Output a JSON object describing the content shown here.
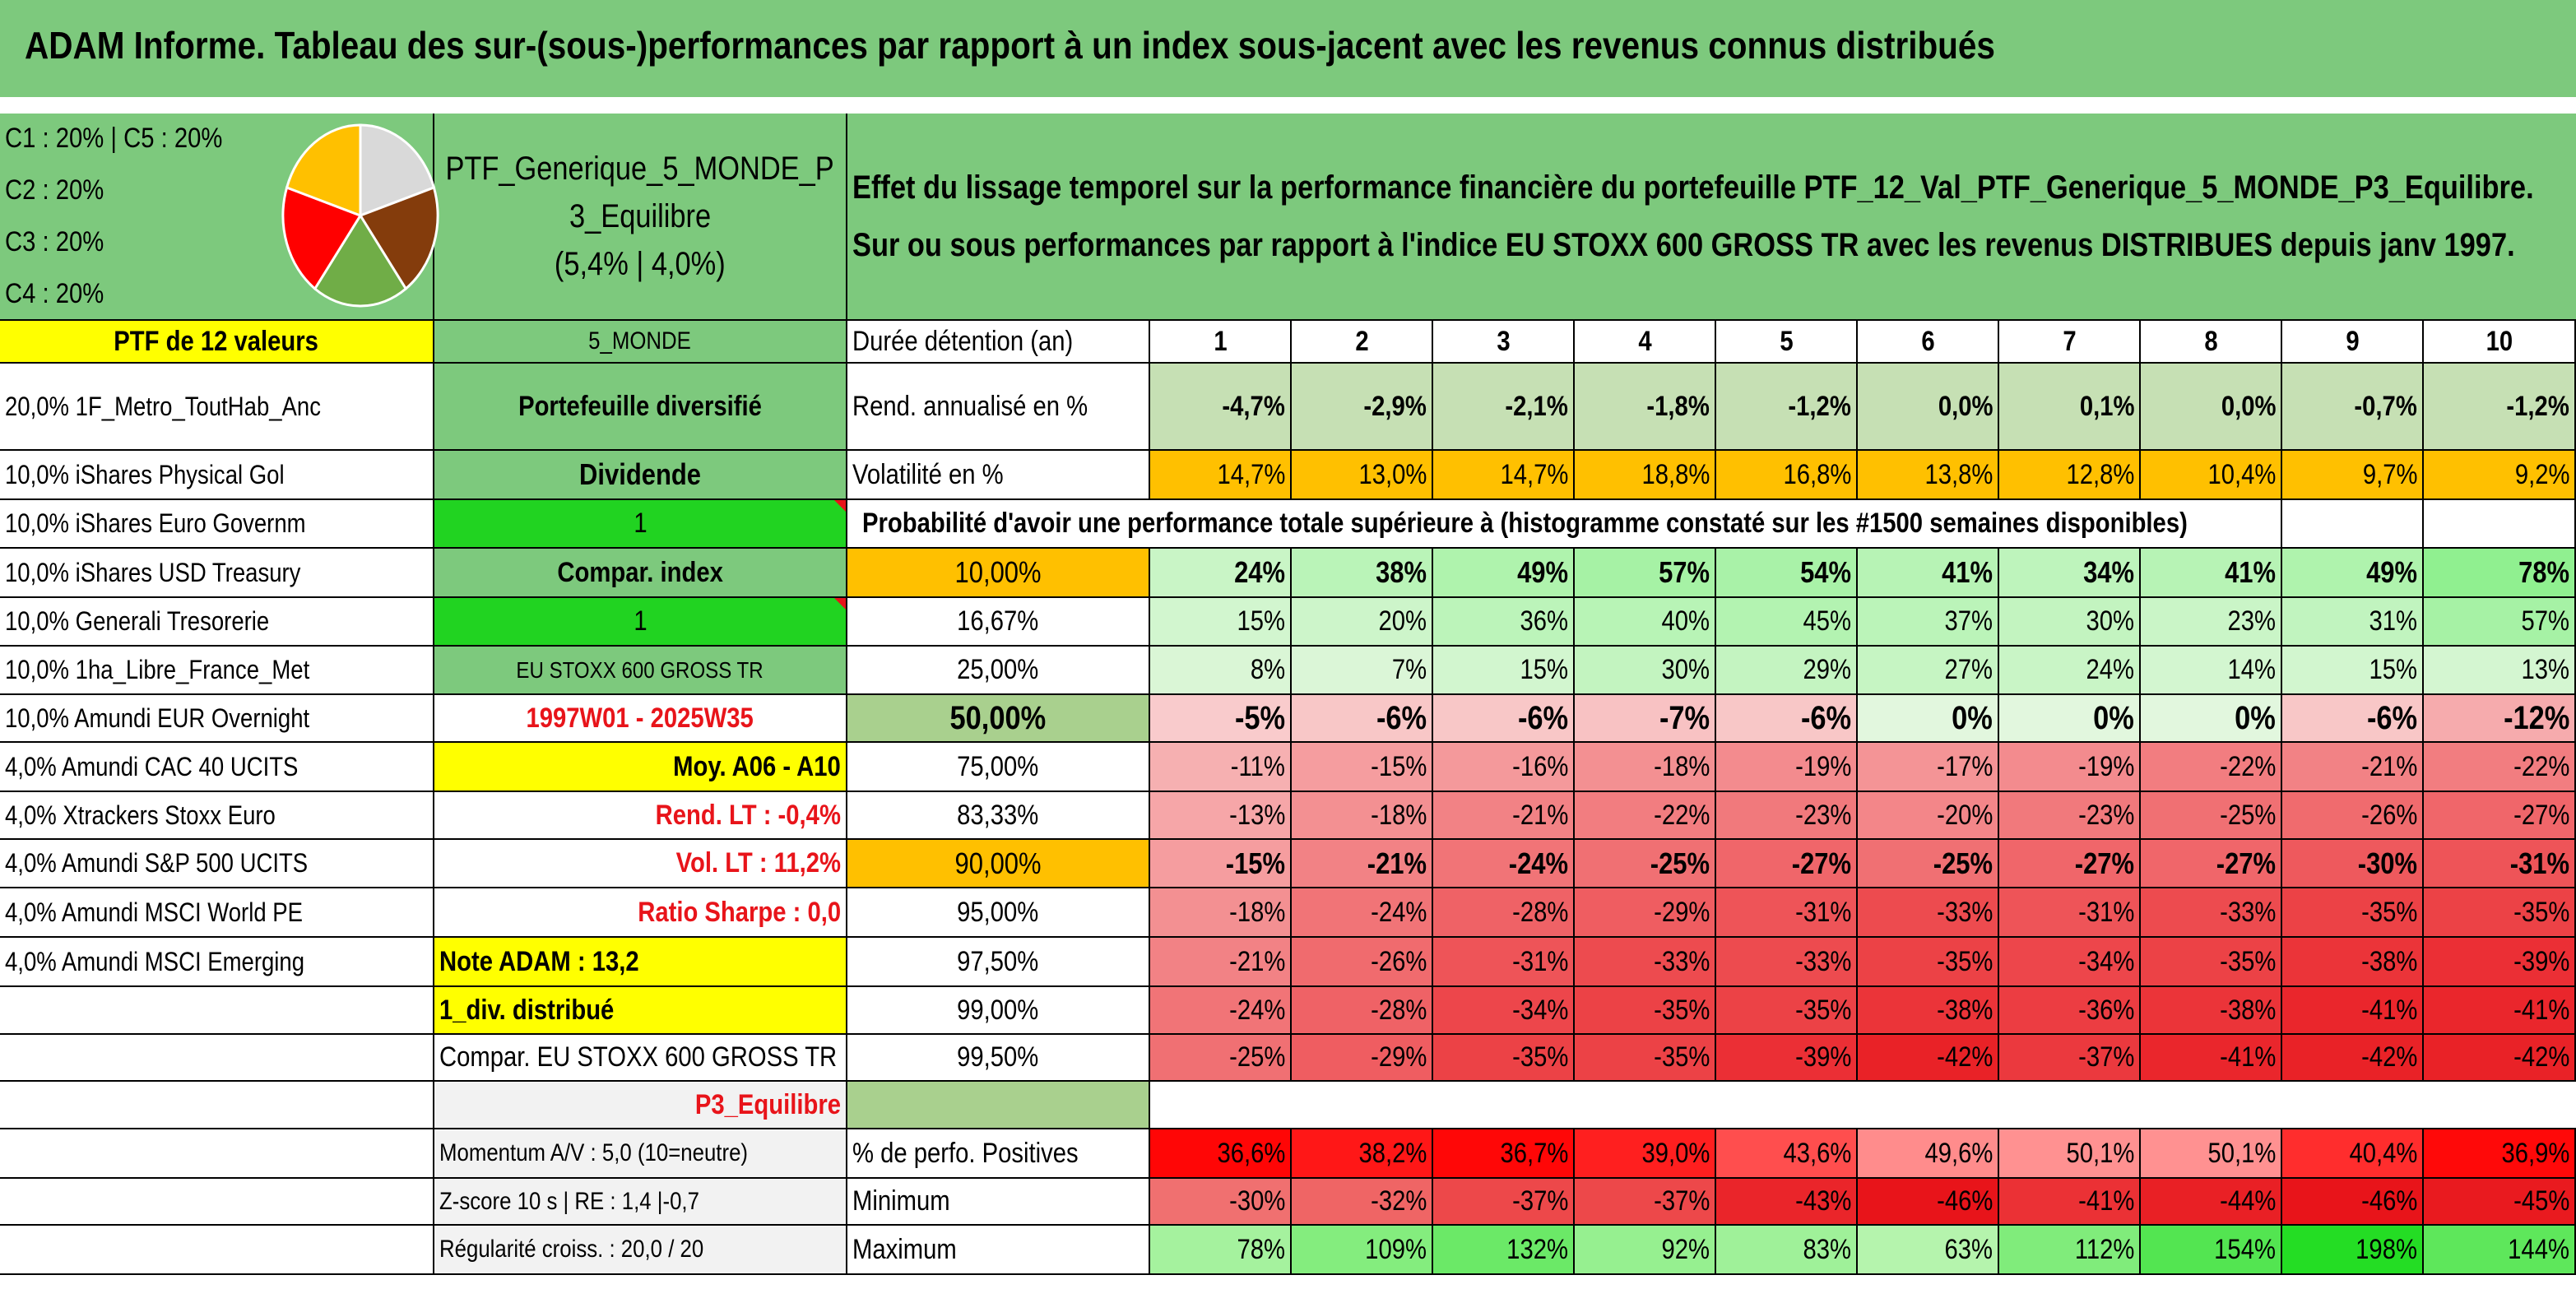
{
  "title": "ADAM Informe. Tableau des sur-(sous-)performances par rapport à un index sous-jacent avec les revenus connus distribués",
  "allocation": {
    "line1": "C1 : 20% | C5 : 20%",
    "line2": "C2 : 20%",
    "line3": "C3 : 20%",
    "line4": "C4 : 20%",
    "pie_slices": [
      {
        "label": "C1",
        "value": 20,
        "color": "#d9d9d9"
      },
      {
        "label": "C2",
        "value": 20,
        "color": "#843c0c"
      },
      {
        "label": "C3",
        "value": 20,
        "color": "#70ad47"
      },
      {
        "label": "C4",
        "value": 20,
        "color": "#ff0000"
      },
      {
        "label": "C5",
        "value": 20,
        "color": "#ffc000"
      }
    ]
  },
  "portfolio": {
    "name_line1": "PTF_Generique_5_MONDE_P",
    "name_line2": "3_Equilibre",
    "name_line3": "(5,4% | 4,0%)"
  },
  "description": {
    "line1": "Effet du lissage temporel sur la performance financière du portefeuille PTF_12_Val_PTF_Generique_5_MONDE_P3_Equilibre.",
    "line2": "Sur ou sous performances par rapport à l'indice EU STOXX 600 GROSS TR avec les revenus DISTRIBUES depuis janv 1997."
  },
  "holdings": {
    "header": "PTF de 12 valeurs",
    "items": [
      "20,0% 1F_Metro_ToutHab_Anc",
      "10,0% iShares Physical Gol",
      "10,0% iShares Euro Governm",
      "10,0% iShares USD Treasury",
      "10,0% Generali Tresorerie",
      "10,0% 1ha_Libre_France_Met",
      "10,0% Amundi EUR Overnight",
      "4,0% Amundi CAC 40 UCITS",
      "4,0% Xtrackers Stoxx Euro",
      "4,0% Amundi S&P 500 UCITS",
      "4,0% Amundi MSCI World PE",
      "4,0% Amundi MSCI Emerging"
    ]
  },
  "info_column": {
    "zone": "5_MONDE",
    "type": "Portefeuille diversifié",
    "dividende_label": "Dividende",
    "dividende_value": "1",
    "compar_label": "Compar. index",
    "compar_value": "1",
    "index_name": "EU STOXX 600 GROSS TR",
    "period": "1997W01 - 2025W35",
    "moy": "Moy. A06 - A10",
    "rend_lt": "Rend. LT : -0,4%",
    "vol_lt": "Vol. LT : 11,2%",
    "sharpe": "Ratio Sharpe : 0,0",
    "note": "Note ADAM : 13,2",
    "div": "1_div. distribué",
    "compar_full": "Compar. EU STOXX 600 GROSS TR",
    "profile": "P3_Equilibre",
    "momentum": "Momentum A/V : 5,0 (10=neutre)",
    "zscore": "Z-score 10 s | RE : 1,4 |-0,7",
    "regularite": "Régularité croiss. : 20,0 / 20"
  },
  "table": {
    "duration_label": "Durée détention (an)",
    "years": [
      "1",
      "2",
      "3",
      "4",
      "5",
      "6",
      "7",
      "8",
      "9",
      "10"
    ],
    "rend_label": "Rend. annualisé en %",
    "rend": [
      "-4,7%",
      "-2,9%",
      "-2,1%",
      "-1,8%",
      "-1,2%",
      "0,0%",
      "0,1%",
      "0,0%",
      "-0,7%",
      "-1,2%"
    ],
    "vol_label": "Volatilité en %",
    "vol": [
      "14,7%",
      "13,0%",
      "14,7%",
      "18,8%",
      "16,8%",
      "13,8%",
      "12,8%",
      "10,4%",
      "9,7%",
      "9,2%"
    ],
    "prob_header": "Probabilité d'avoir une performance totale supérieure à (histogramme constaté sur les #1500 semaines disponibles)",
    "quantiles": [
      {
        "label": "10,00%",
        "values": [
          "24%",
          "38%",
          "49%",
          "57%",
          "54%",
          "41%",
          "34%",
          "41%",
          "49%",
          "78%"
        ]
      },
      {
        "label": "16,67%",
        "values": [
          "15%",
          "20%",
          "36%",
          "40%",
          "45%",
          "37%",
          "30%",
          "23%",
          "31%",
          "57%"
        ]
      },
      {
        "label": "25,00%",
        "values": [
          "8%",
          "7%",
          "15%",
          "30%",
          "29%",
          "27%",
          "24%",
          "14%",
          "15%",
          "13%"
        ]
      },
      {
        "label": "50,00%",
        "values": [
          "-5%",
          "-6%",
          "-6%",
          "-7%",
          "-6%",
          "0%",
          "0%",
          "0%",
          "-6%",
          "-12%"
        ]
      },
      {
        "label": "75,00%",
        "values": [
          "-11%",
          "-15%",
          "-16%",
          "-18%",
          "-19%",
          "-17%",
          "-19%",
          "-22%",
          "-21%",
          "-22%"
        ]
      },
      {
        "label": "83,33%",
        "values": [
          "-13%",
          "-18%",
          "-21%",
          "-22%",
          "-23%",
          "-20%",
          "-23%",
          "-25%",
          "-26%",
          "-27%"
        ]
      },
      {
        "label": "90,00%",
        "values": [
          "-15%",
          "-21%",
          "-24%",
          "-25%",
          "-27%",
          "-25%",
          "-27%",
          "-27%",
          "-30%",
          "-31%"
        ]
      },
      {
        "label": "95,00%",
        "values": [
          "-18%",
          "-24%",
          "-28%",
          "-29%",
          "-31%",
          "-33%",
          "-31%",
          "-33%",
          "-35%",
          "-35%"
        ]
      },
      {
        "label": "97,50%",
        "values": [
          "-21%",
          "-26%",
          "-31%",
          "-33%",
          "-33%",
          "-35%",
          "-34%",
          "-35%",
          "-38%",
          "-39%"
        ]
      },
      {
        "label": "99,00%",
        "values": [
          "-24%",
          "-28%",
          "-34%",
          "-35%",
          "-35%",
          "-38%",
          "-36%",
          "-38%",
          "-41%",
          "-41%"
        ]
      },
      {
        "label": "99,50%",
        "values": [
          "-25%",
          "-29%",
          "-35%",
          "-35%",
          "-39%",
          "-42%",
          "-37%",
          "-41%",
          "-42%",
          "-42%"
        ]
      }
    ],
    "pos_label": "% de perfo. Positives",
    "pos": [
      "36,6%",
      "38,2%",
      "36,7%",
      "39,0%",
      "43,6%",
      "49,6%",
      "50,1%",
      "50,1%",
      "40,4%",
      "36,9%"
    ],
    "min_label": "Minimum",
    "min": [
      "-30%",
      "-32%",
      "-37%",
      "-37%",
      "-43%",
      "-46%",
      "-41%",
      "-44%",
      "-46%",
      "-45%"
    ],
    "max_label": "Maximum",
    "max": [
      "78%",
      "109%",
      "132%",
      "92%",
      "83%",
      "63%",
      "112%",
      "154%",
      "198%",
      "144%"
    ]
  },
  "colors": {
    "title_green": "#7dc97d",
    "highlight_yellow": "#ffff00",
    "bright_green": "#21d321",
    "orange": "#ffc000",
    "text_red": "#e8141a"
  }
}
